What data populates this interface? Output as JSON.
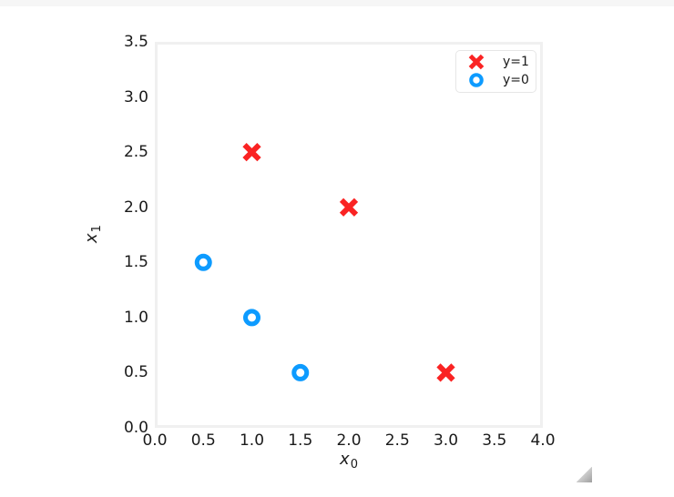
{
  "window": {
    "background": "#ffffff",
    "top_strip_color": "#f6f6f6",
    "resize_grip": "drag-to-resize"
  },
  "axes_style": {
    "spine_color": "#f0f0f0",
    "tick_label_color": "#1a1a1a",
    "legend_border_color": "#e6e6e6"
  },
  "chart_data": {
    "type": "scatter",
    "title": "",
    "xlabel": {
      "base": "x",
      "sub": "0"
    },
    "ylabel": {
      "base": "x",
      "sub": "1"
    },
    "xlim": [
      0,
      4
    ],
    "ylim": [
      0,
      3.5
    ],
    "x_tick_labels": [
      "0.0",
      "0.5",
      "1.0",
      "1.5",
      "2.0",
      "2.5",
      "3.0",
      "3.5",
      "4.0"
    ],
    "y_tick_labels": [
      "0.0",
      "0.5",
      "1.0",
      "1.5",
      "2.0",
      "2.5",
      "3.0",
      "3.5"
    ],
    "grid": false,
    "legend_position": "upper right",
    "series": [
      {
        "name": "y=1",
        "marker": "x",
        "color": "#fa2323",
        "points": [
          [
            1.0,
            2.5
          ],
          [
            2.0,
            2.0
          ],
          [
            3.0,
            0.5
          ]
        ]
      },
      {
        "name": "y=0",
        "marker": "o",
        "color": "#0d9bff",
        "points": [
          [
            0.5,
            1.5
          ],
          [
            1.0,
            1.0
          ],
          [
            1.5,
            0.5
          ]
        ]
      }
    ]
  }
}
